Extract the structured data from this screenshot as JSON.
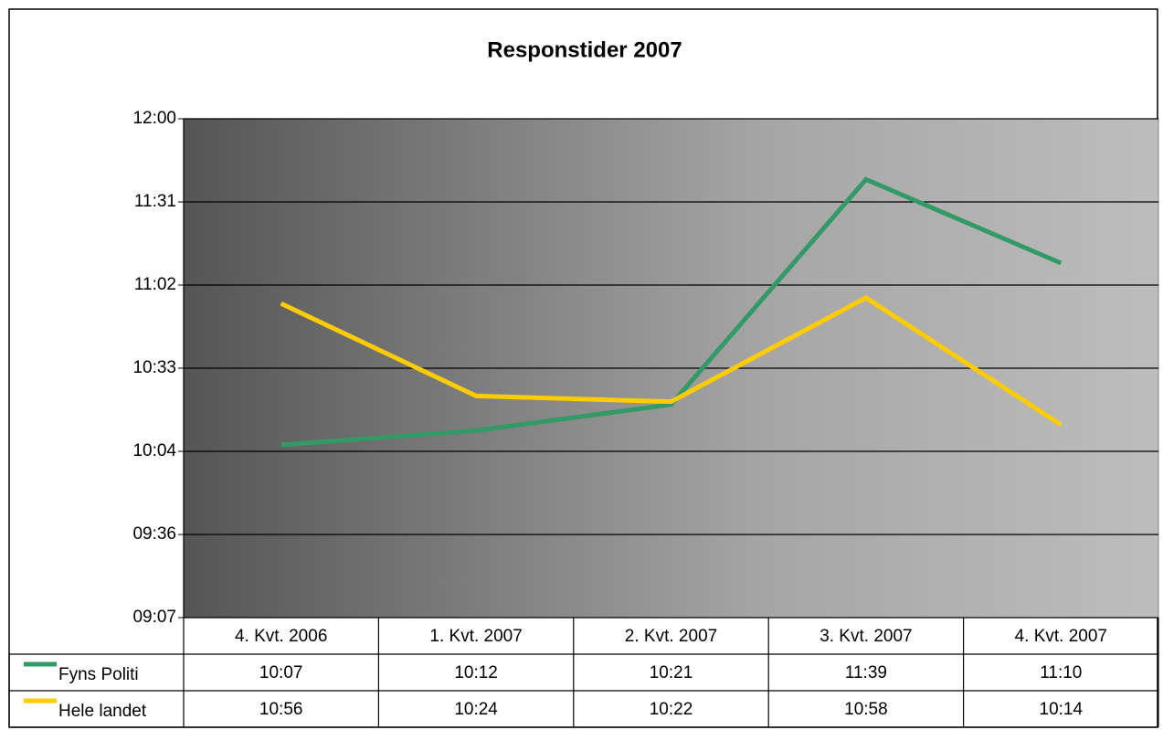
{
  "chart_data": {
    "type": "line",
    "title": "Responstider 2007",
    "categories": [
      "4. Kvt. 2006",
      "1. Kvt. 2007",
      "2. Kvt. 2007",
      "3. Kvt. 2007",
      "4. Kvt. 2007"
    ],
    "series": [
      {
        "name": "Fyns Politi",
        "color": "#339966",
        "values": [
          607,
          612,
          621,
          699,
          670
        ],
        "value_labels": [
          "10:07",
          "10:12",
          "10:21",
          "11:39",
          "11:10"
        ]
      },
      {
        "name": "Hele landet",
        "color": "#ffcc00",
        "values": [
          656,
          624,
          622,
          658,
          614
        ],
        "value_labels": [
          "10:56",
          "10:24",
          "10:22",
          "10:58",
          "10:14"
        ]
      }
    ],
    "ylim": [
      547.2,
      720
    ],
    "yticks": [
      {
        "value": 547.2,
        "label": "09:07"
      },
      {
        "value": 576,
        "label": "09:36"
      },
      {
        "value": 604.8,
        "label": "10:04"
      },
      {
        "value": 633.6,
        "label": "10:33"
      },
      {
        "value": 662.4,
        "label": "11:02"
      },
      {
        "value": 691.2,
        "label": "11:31"
      },
      {
        "value": 720,
        "label": "12:00"
      }
    ],
    "grid": true,
    "data_table": true
  }
}
